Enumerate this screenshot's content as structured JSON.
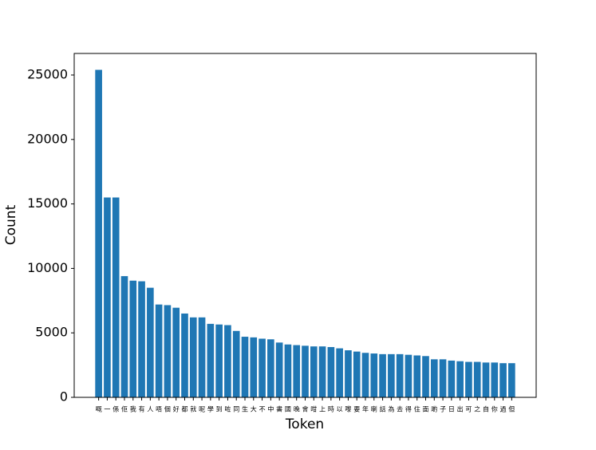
{
  "chart_data": {
    "type": "bar",
    "xlabel": "Token",
    "ylabel": "Count",
    "categories": [
      "嘅",
      "一",
      "係",
      "佢",
      "我",
      "有",
      "人",
      "唔",
      "個",
      "好",
      "都",
      "就",
      "呢",
      "學",
      "到",
      "咗",
      "同",
      "生",
      "大",
      "不",
      "中",
      "書",
      "國",
      "晚",
      "會",
      "咁",
      "上",
      "時",
      "以",
      "嚟",
      "要",
      "年",
      "喇",
      "話",
      "為",
      "去",
      "得",
      "住",
      "面",
      "啲",
      "子",
      "日",
      "出",
      "可",
      "之",
      "自",
      "你",
      "過",
      "但"
    ],
    "values": [
      25400,
      15500,
      15500,
      9400,
      9050,
      9000,
      8500,
      7200,
      7150,
      6950,
      6500,
      6200,
      6200,
      5700,
      5650,
      5600,
      5150,
      4700,
      4650,
      4550,
      4500,
      4250,
      4100,
      4050,
      4000,
      3950,
      3950,
      3900,
      3800,
      3650,
      3550,
      3450,
      3400,
      3350,
      3350,
      3350,
      3300,
      3250,
      3200,
      2950,
      2950,
      2850,
      2800,
      2750,
      2750,
      2700,
      2700,
      2650,
      2650
    ],
    "color": "#1f77b4",
    "ylim": [
      0,
      26670
    ],
    "yticks": [
      0,
      5000,
      10000,
      15000,
      20000,
      25000
    ]
  }
}
